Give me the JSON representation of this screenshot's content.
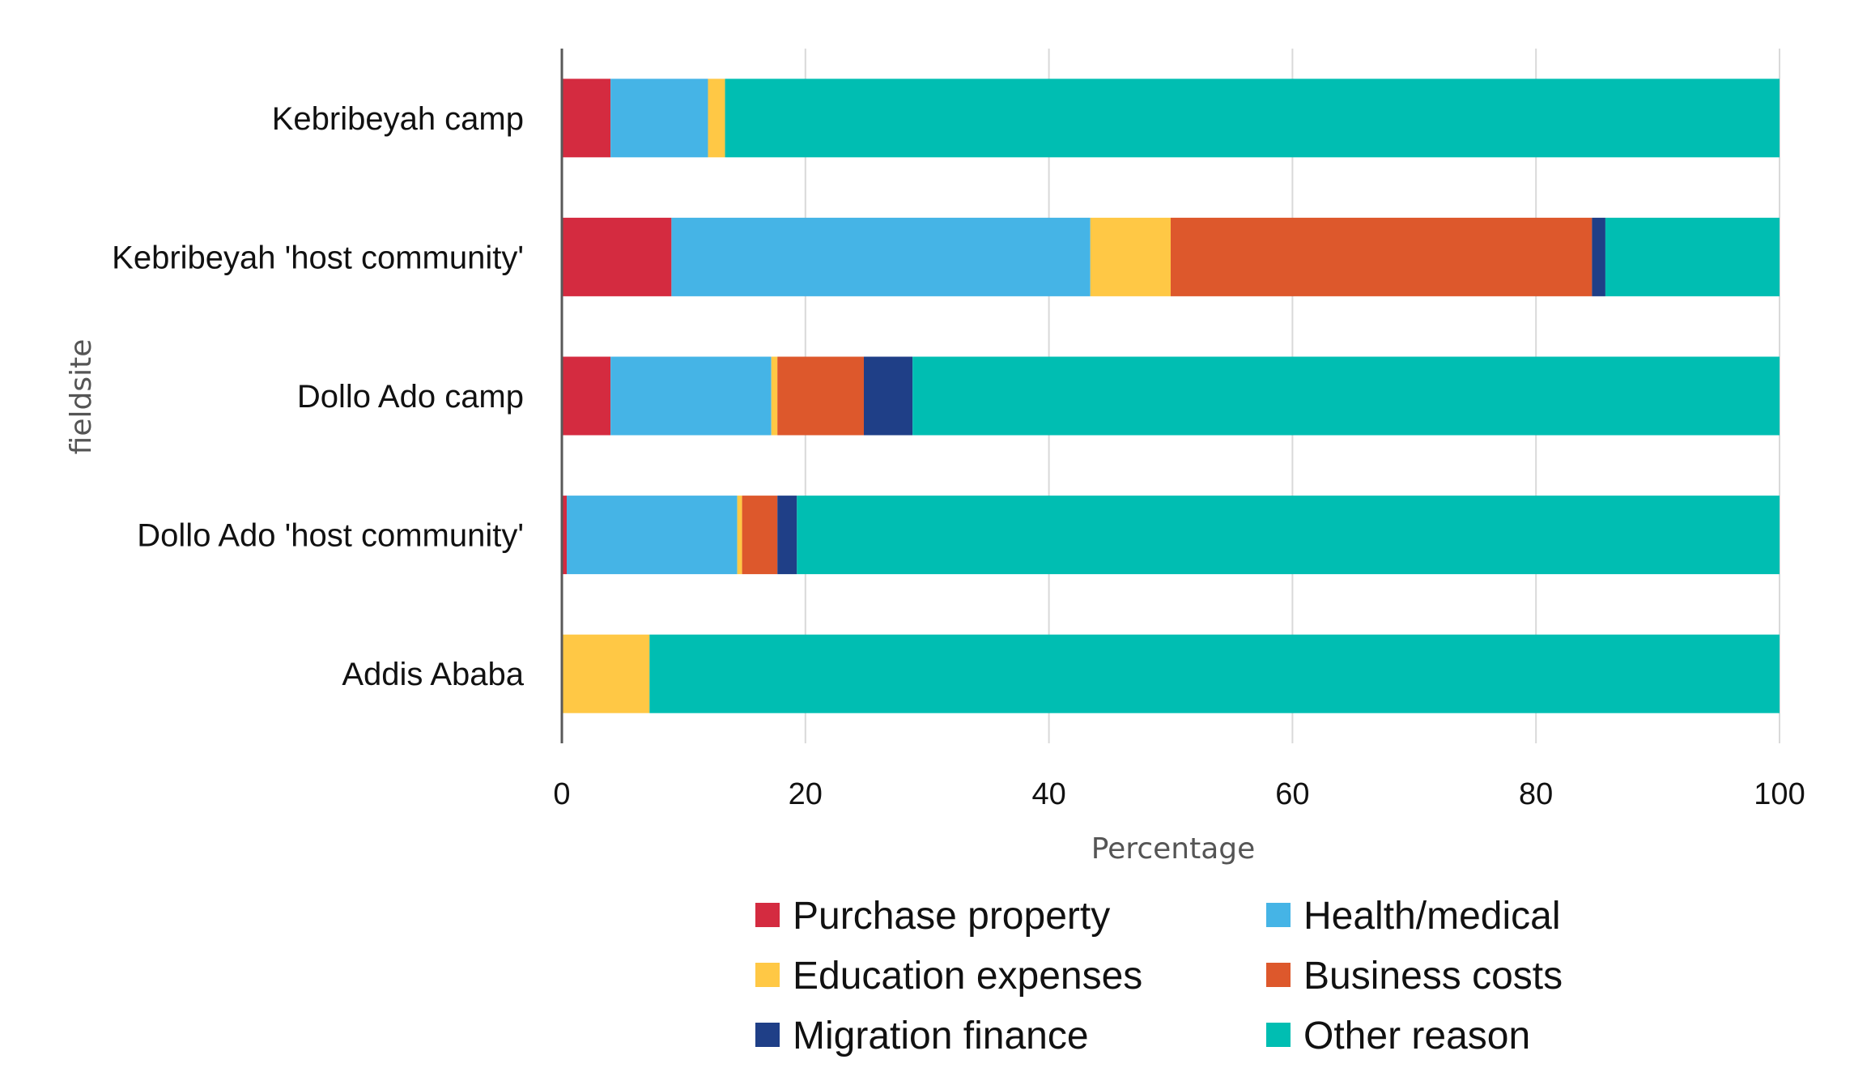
{
  "chart_data": {
    "type": "bar",
    "orientation": "horizontal",
    "stacked": true,
    "title": "",
    "xlabel": "Percentage",
    "ylabel": "fieldsite",
    "xlim": [
      0,
      100
    ],
    "xticks": [
      "0",
      "20",
      "40",
      "60",
      "80",
      "100"
    ],
    "grid": "vertical",
    "legend_position": "bottom",
    "categories": [
      "Kebribeyah camp",
      "Kebribeyah 'host community'",
      "Dollo Ado camp",
      "Dollo Ado 'host community'",
      "Addis Ababa"
    ],
    "series": [
      {
        "name": "Purchase property",
        "color": "#D42B40",
        "values": [
          4.0,
          9.0,
          4.0,
          0.4,
          0.0
        ]
      },
      {
        "name": "Health/medical",
        "color": "#45B4E6",
        "values": [
          8.0,
          34.4,
          13.2,
          14.0,
          0.0
        ]
      },
      {
        "name": "Education expenses",
        "color": "#FFC845",
        "values": [
          1.4,
          6.6,
          0.5,
          0.4,
          7.2
        ]
      },
      {
        "name": "Business costs",
        "color": "#DD582C",
        "values": [
          0.0,
          34.6,
          7.1,
          2.9,
          0.0
        ]
      },
      {
        "name": "Migration finance",
        "color": "#1F3F87",
        "values": [
          0.0,
          1.1,
          4.0,
          1.6,
          0.0
        ]
      },
      {
        "name": "Other reason",
        "color": "#00BEB2",
        "values": [
          86.6,
          14.3,
          71.2,
          80.7,
          92.8
        ]
      }
    ]
  }
}
